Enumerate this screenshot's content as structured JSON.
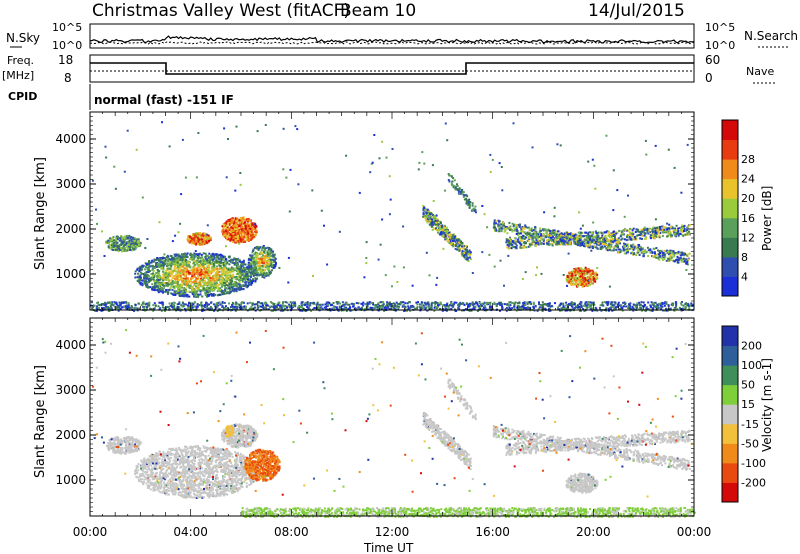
{
  "header": {
    "title": "Christmas Valley West (fitACF)",
    "beam": "Beam 10",
    "date": "14/Jul/2015"
  },
  "sky_panel": {
    "left_label": "N.Sky",
    "right_label": "N.Search",
    "ticks": [
      "10^5",
      "10^0"
    ]
  },
  "freq_panel": {
    "left_label_1": "Freq.",
    "left_label_2": "[MHz]",
    "left_ticks": [
      "18",
      "8"
    ],
    "right_ticks": [
      "60",
      "0"
    ],
    "right_label": "Nave"
  },
  "cpid": {
    "label": "CPID",
    "text": "normal (fast) -151 IF"
  },
  "colors": {
    "background": "#ffffff",
    "ground": "#bdbdbd"
  },
  "chart_data": [
    {
      "type": "heatmap",
      "name": "power",
      "ylabel": "Slant Range [km]",
      "xlabel": "",
      "x_ticks": [
        "00:00",
        "04:00",
        "08:00",
        "12:00",
        "16:00",
        "20:00",
        "00:00"
      ],
      "y_ticks": [
        1000,
        2000,
        3000,
        4000
      ],
      "ylim": [
        200,
        4600
      ],
      "xlim_hours": [
        0,
        24
      ],
      "colorbar": {
        "label": "Power [dB]",
        "ticks": [
          4,
          8,
          12,
          16,
          20,
          24,
          28
        ],
        "colors": [
          "#1a2fd6",
          "#2f4fb0",
          "#3a7a4f",
          "#5aa05a",
          "#9acb3a",
          "#e8c32c",
          "#f08a1a",
          "#e83b10",
          "#d40a0a"
        ]
      }
    },
    {
      "type": "heatmap",
      "name": "velocity",
      "ylabel": "Slant Range [km]",
      "xlabel": "Time UT",
      "x_ticks": [
        "00:00",
        "04:00",
        "08:00",
        "12:00",
        "16:00",
        "20:00",
        "00:00"
      ],
      "y_ticks": [
        1000,
        2000,
        3000,
        4000
      ],
      "ylim": [
        200,
        4600
      ],
      "xlim_hours": [
        0,
        24
      ],
      "colorbar": {
        "label": "Velocity [m s-1]",
        "ticks": [
          200,
          100,
          50,
          15,
          -15,
          -50,
          -100,
          -200
        ],
        "colors": [
          "#2233aa",
          "#2f5f9a",
          "#3f8f5a",
          "#7fcf3a",
          "#c7c7c7",
          "#f2c03a",
          "#f08a1a",
          "#e84a10",
          "#d40a0a"
        ]
      }
    }
  ]
}
